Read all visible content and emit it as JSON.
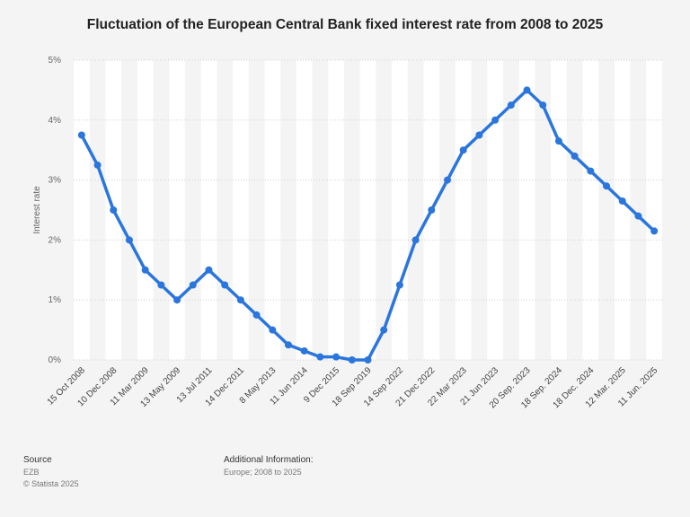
{
  "chart_data": {
    "type": "line",
    "title": "Fluctuation of the European Central Bank fixed interest rate from 2008 to 2025",
    "y_label": "Interest rate",
    "categories": [
      "15 Oct 2008",
      null,
      "10 Dec 2008",
      null,
      "11 Mar 2009",
      null,
      "13 May 2009",
      null,
      "13 Jul 2011",
      null,
      "14 Dec 2011",
      null,
      "8 May 2013",
      null,
      "11 Jun 2014",
      null,
      "9 Dec 2015",
      null,
      "18 Sep 2019",
      null,
      "14 Sep 2022",
      null,
      "21 Dec 2022",
      null,
      "22 Mar 2023",
      null,
      "21 Jun 2023",
      null,
      "20 Sep. 2023",
      null,
      "18 Sep. 2024",
      null,
      "18 Dec. 2024",
      null,
      "12 Mar. 2025",
      null,
      "11 Jun. 2025"
    ],
    "series": [
      {
        "name": "Interest rate",
        "color": "#2a76dd",
        "values": [
          3.75,
          3.25,
          2.5,
          2.0,
          1.5,
          1.25,
          1.0,
          1.25,
          1.5,
          1.25,
          1.0,
          0.75,
          0.5,
          0.25,
          0.15,
          0.05,
          0.05,
          0.0,
          0.0,
          0.5,
          1.25,
          2.0,
          2.5,
          3.0,
          3.5,
          3.75,
          4.0,
          4.25,
          4.5,
          4.25,
          3.65,
          3.4,
          3.15,
          2.9,
          2.65,
          2.4,
          2.15
        ]
      }
    ],
    "ylim": [
      0,
      5
    ],
    "yticks": [
      {
        "value": 0,
        "label": "0%"
      },
      {
        "value": 1,
        "label": "1%"
      },
      {
        "value": 2,
        "label": "2%"
      },
      {
        "value": 3,
        "label": "3%"
      },
      {
        "value": 4,
        "label": "4%"
      },
      {
        "value": 5,
        "label": "5%"
      }
    ],
    "grid": true
  },
  "footer": {
    "source_heading": "Source",
    "source": "EZB",
    "copyright": "© Statista 2025",
    "info_heading": "Additional Information:",
    "info": "Europe; 2008 to 2025"
  }
}
